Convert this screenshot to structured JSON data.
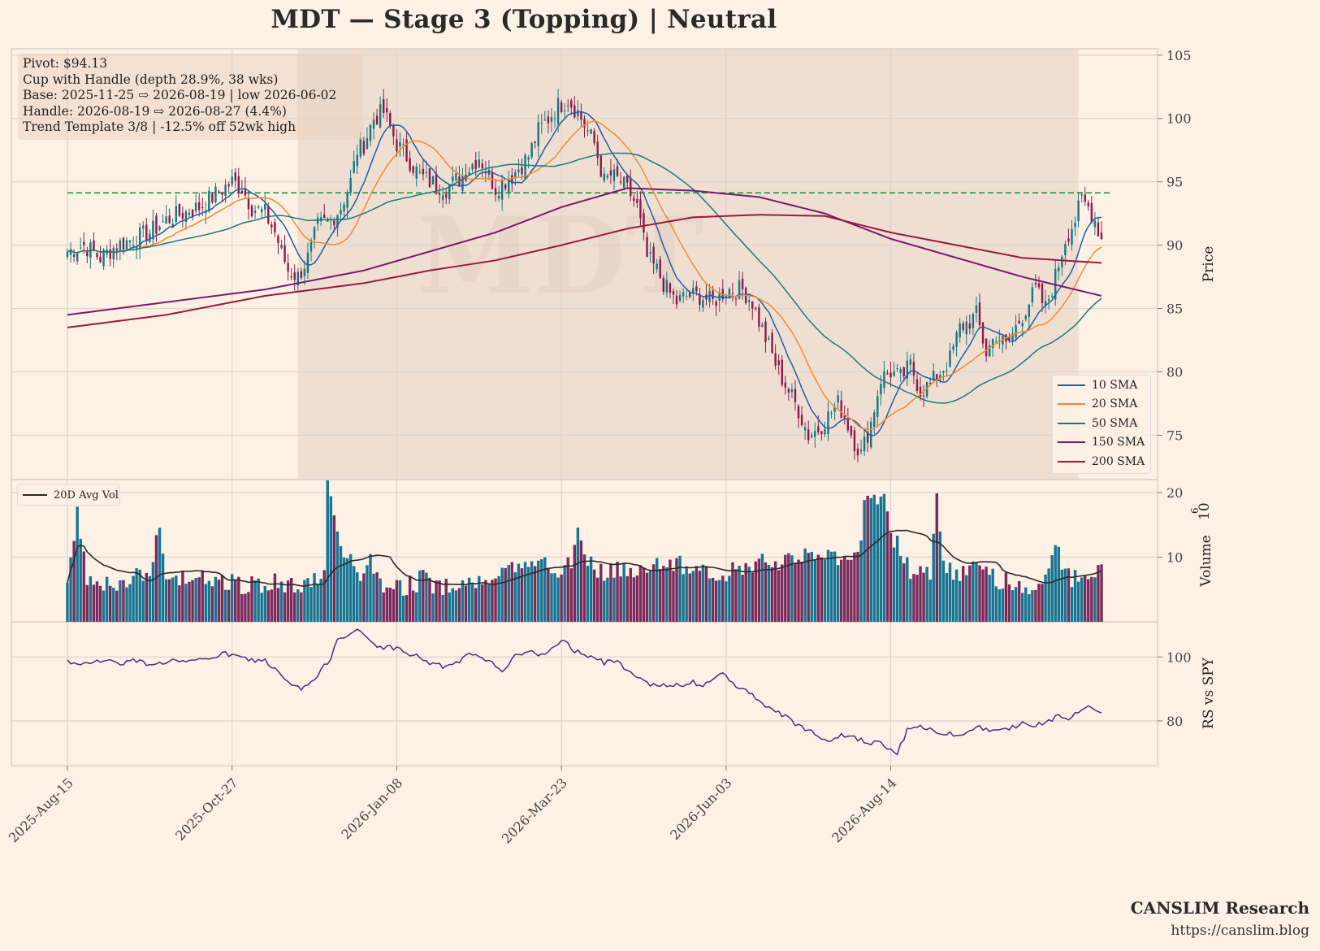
{
  "title": "MDT  —  Stage 3 (Topping)  |  Neutral",
  "info": [
    "Pivot: $94.13",
    "Cup with Handle  (depth 28.9%, 38 wks)",
    "Base: 2025-11-25 ⇨ 2026-08-19  |  low 2026-06-02",
    "Handle: 2026-08-19 ⇨ 2026-08-27 (4.4%)",
    "Trend Template 3/8  |  -12.5% off 52wk high"
  ],
  "watermark": "MDT",
  "footer": {
    "brand": "CANSLIM Research",
    "url": "https://canslim.blog"
  },
  "colors": {
    "background": "#fdf1e6",
    "up": "#16787f",
    "down": "#8e1a4c",
    "volume_up": "#187592",
    "volume_down": "#7a2a5c",
    "pivot": "#1a8a3a",
    "base_shade": "#ead8cc",
    "rs": "#4a2f7a",
    "avg_vol": "#2a2a2a"
  },
  "legend": [
    {
      "label": "10 SMA",
      "color": "#1f5fa0"
    },
    {
      "label": "20 SMA",
      "color": "#f28a30"
    },
    {
      "label": "50 SMA",
      "color": "#1a7a7a"
    },
    {
      "label": "150 SMA",
      "color": "#7a1a6a"
    },
    {
      "label": "200 SMA",
      "color": "#9a1a3a"
    }
  ],
  "vol_legend": "20D Avg Vol",
  "chart_data": {
    "type": "candlestick",
    "x_ticks": [
      "2025-Aug-15",
      "2025-Oct-27",
      "2026-Jan-08",
      "2026-Mar-23",
      "2026-Jun-03",
      "2026-Aug-14"
    ],
    "price_axis": {
      "label": "Price",
      "ticks": [
        75,
        80,
        85,
        90,
        95,
        100,
        105
      ],
      "ylim": [
        71.5,
        105.5
      ]
    },
    "volume_axis": {
      "label": "Volume",
      "multiplier": "10",
      "exponent": "6",
      "ticks": [
        10,
        20
      ],
      "ylim": [
        0,
        22
      ]
    },
    "rs_axis": {
      "label": "RS vs SPY",
      "ticks": [
        80,
        100
      ],
      "ylim": [
        66,
        111
      ]
    },
    "pivot": 94.13,
    "base_period": {
      "start": "2025-11-25",
      "end": "2026-08-19"
    },
    "close_anchors": [
      [
        0,
        89.5
      ],
      [
        5,
        90
      ],
      [
        10,
        89
      ],
      [
        15,
        90
      ],
      [
        20,
        90.5
      ],
      [
        25,
        91
      ],
      [
        30,
        92
      ],
      [
        35,
        92.5
      ],
      [
        40,
        93
      ],
      [
        45,
        94
      ],
      [
        50,
        95
      ],
      [
        53,
        94.5
      ],
      [
        56,
        93
      ],
      [
        60,
        92.5
      ],
      [
        63,
        91
      ],
      [
        67,
        88
      ],
      [
        70,
        87.5
      ],
      [
        73,
        89
      ],
      [
        76,
        91.5
      ],
      [
        80,
        92
      ],
      [
        83,
        93
      ],
      [
        86,
        95
      ],
      [
        88,
        97.5
      ],
      [
        90,
        98
      ],
      [
        93,
        100
      ],
      [
        96,
        100.5
      ],
      [
        100,
        98
      ],
      [
        103,
        97
      ],
      [
        107,
        95.5
      ],
      [
        110,
        95
      ],
      [
        115,
        94.5
      ],
      [
        120,
        95.5
      ],
      [
        125,
        97
      ],
      [
        130,
        94.5
      ],
      [
        135,
        95.5
      ],
      [
        140,
        97
      ],
      [
        143,
        99
      ],
      [
        146,
        100
      ],
      [
        149,
        101
      ],
      [
        152,
        101.5
      ],
      [
        155,
        100.5
      ],
      [
        158,
        99
      ],
      [
        160,
        98
      ],
      [
        163,
        95
      ],
      [
        165,
        95.5
      ],
      [
        168,
        95
      ],
      [
        171,
        94
      ],
      [
        173,
        93
      ],
      [
        176,
        89
      ],
      [
        179,
        88
      ],
      [
        182,
        86.5
      ],
      [
        185,
        85.5
      ],
      [
        188,
        86
      ],
      [
        192,
        86
      ],
      [
        196,
        85.5
      ],
      [
        200,
        86.5
      ],
      [
        205,
        86.5
      ],
      [
        208,
        85.5
      ],
      [
        210,
        84
      ],
      [
        213,
        82
      ],
      [
        216,
        80
      ],
      [
        219,
        78.5
      ],
      [
        222,
        77
      ],
      [
        225,
        75
      ],
      [
        228,
        75.5
      ],
      [
        231,
        76.5
      ],
      [
        234,
        77.5
      ],
      [
        236,
        76.5
      ],
      [
        239,
        74.5
      ],
      [
        241,
        73.5
      ],
      [
        244,
        76
      ],
      [
        247,
        79.5
      ],
      [
        250,
        80
      ],
      [
        253,
        79.5
      ],
      [
        256,
        80.5
      ],
      [
        259,
        78.5
      ],
      [
        262,
        79
      ],
      [
        265,
        80
      ],
      [
        268,
        81
      ],
      [
        271,
        83.5
      ],
      [
        274,
        84
      ],
      [
        276,
        84.5
      ],
      [
        279,
        81.5
      ],
      [
        282,
        83
      ],
      [
        285,
        82
      ],
      [
        288,
        83.5
      ],
      [
        291,
        85
      ],
      [
        294,
        86.5
      ],
      [
        297,
        85
      ],
      [
        300,
        87.5
      ],
      [
        303,
        90.5
      ],
      [
        306,
        92
      ],
      [
        308,
        93.5
      ],
      [
        310,
        93
      ],
      [
        312,
        92
      ],
      [
        314,
        90.5
      ]
    ],
    "volume_anchors": [
      [
        0,
        6
      ],
      [
        3,
        18
      ],
      [
        6,
        7
      ],
      [
        10,
        6
      ],
      [
        15,
        6
      ],
      [
        18,
        5.5
      ],
      [
        22,
        7.5
      ],
      [
        25,
        7
      ],
      [
        28,
        16
      ],
      [
        30,
        8
      ],
      [
        33,
        6
      ],
      [
        36,
        6.5
      ],
      [
        40,
        7.5
      ],
      [
        44,
        6.5
      ],
      [
        48,
        6
      ],
      [
        50,
        6.5
      ],
      [
        53,
        5.5
      ],
      [
        56,
        6
      ],
      [
        60,
        5.5
      ],
      [
        63,
        7
      ],
      [
        66,
        5.5
      ],
      [
        70,
        5.5
      ],
      [
        74,
        6
      ],
      [
        78,
        7
      ],
      [
        79,
        21
      ],
      [
        82,
        14
      ],
      [
        84,
        11
      ],
      [
        88,
        7
      ],
      [
        90,
        8
      ],
      [
        92,
        10
      ],
      [
        95,
        6
      ],
      [
        98,
        5.5
      ],
      [
        102,
        5.5
      ],
      [
        106,
        6
      ],
      [
        108,
        7
      ],
      [
        110,
        5.5
      ],
      [
        114,
        5
      ],
      [
        117,
        6.5
      ],
      [
        120,
        5.5
      ],
      [
        124,
        6
      ],
      [
        128,
        7
      ],
      [
        132,
        9
      ],
      [
        136,
        8.5
      ],
      [
        140,
        8
      ],
      [
        143,
        9.5
      ],
      [
        146,
        9
      ],
      [
        150,
        8
      ],
      [
        153,
        9
      ],
      [
        155,
        16
      ],
      [
        158,
        9
      ],
      [
        161,
        8
      ],
      [
        164,
        7.5
      ],
      [
        168,
        8
      ],
      [
        172,
        7.5
      ],
      [
        176,
        9
      ],
      [
        180,
        9.5
      ],
      [
        184,
        9
      ],
      [
        188,
        8.5
      ],
      [
        192,
        9
      ],
      [
        196,
        7.5
      ],
      [
        200,
        7.5
      ],
      [
        204,
        8
      ],
      [
        208,
        9
      ],
      [
        212,
        10.5
      ],
      [
        216,
        9
      ],
      [
        220,
        9.5
      ],
      [
        224,
        10.5
      ],
      [
        228,
        9.5
      ],
      [
        232,
        10
      ],
      [
        236,
        10
      ],
      [
        240,
        9.5
      ],
      [
        242,
        18
      ],
      [
        245,
        20
      ],
      [
        248,
        19
      ],
      [
        250,
        14
      ],
      [
        253,
        11
      ],
      [
        256,
        8
      ],
      [
        260,
        7
      ],
      [
        262,
        8
      ],
      [
        264,
        21
      ],
      [
        266,
        8
      ],
      [
        270,
        7.5
      ],
      [
        274,
        8.5
      ],
      [
        278,
        8
      ],
      [
        282,
        6.5
      ],
      [
        286,
        6
      ],
      [
        290,
        5.5
      ],
      [
        294,
        6
      ],
      [
        298,
        7
      ],
      [
        300,
        13
      ],
      [
        302,
        9
      ],
      [
        305,
        6.5
      ],
      [
        310,
        7
      ],
      [
        314,
        7.5
      ]
    ],
    "rs_anchors": [
      [
        0,
        99
      ],
      [
        4,
        97
      ],
      [
        8,
        99
      ],
      [
        12,
        99
      ],
      [
        16,
        98
      ],
      [
        20,
        99
      ],
      [
        24,
        98
      ],
      [
        28,
        98
      ],
      [
        32,
        99
      ],
      [
        36,
        98
      ],
      [
        40,
        99
      ],
      [
        44,
        100
      ],
      [
        48,
        101
      ],
      [
        52,
        100
      ],
      [
        56,
        99
      ],
      [
        60,
        99
      ],
      [
        62,
        97
      ],
      [
        65,
        94
      ],
      [
        68,
        91
      ],
      [
        71,
        90
      ],
      [
        74,
        92
      ],
      [
        76,
        94
      ],
      [
        78,
        97
      ],
      [
        80,
        100
      ],
      [
        82,
        106
      ],
      [
        85,
        107
      ],
      [
        88,
        108
      ],
      [
        90,
        107
      ],
      [
        93,
        104
      ],
      [
        96,
        103
      ],
      [
        100,
        103
      ],
      [
        103,
        101
      ],
      [
        107,
        100
      ],
      [
        110,
        98
      ],
      [
        114,
        97
      ],
      [
        118,
        98
      ],
      [
        121,
        100
      ],
      [
        123,
        101
      ],
      [
        126,
        99
      ],
      [
        129,
        98
      ],
      [
        132,
        96
      ],
      [
        136,
        100
      ],
      [
        139,
        102
      ],
      [
        142,
        101
      ],
      [
        145,
        101
      ],
      [
        148,
        103
      ],
      [
        151,
        105
      ],
      [
        154,
        102
      ],
      [
        157,
        101
      ],
      [
        160,
        100
      ],
      [
        163,
        98
      ],
      [
        166,
        99
      ],
      [
        169,
        97
      ],
      [
        172,
        95
      ],
      [
        175,
        93
      ],
      [
        178,
        91
      ],
      [
        181,
        91
      ],
      [
        184,
        91
      ],
      [
        187,
        91
      ],
      [
        190,
        92
      ],
      [
        193,
        91
      ],
      [
        196,
        93
      ],
      [
        199,
        95
      ],
      [
        202,
        92
      ],
      [
        205,
        90
      ],
      [
        208,
        88
      ],
      [
        211,
        86
      ],
      [
        214,
        83
      ],
      [
        217,
        82
      ],
      [
        220,
        80
      ],
      [
        223,
        78
      ],
      [
        226,
        77
      ],
      [
        229,
        75
      ],
      [
        232,
        74
      ],
      [
        235,
        76
      ],
      [
        238,
        75
      ],
      [
        241,
        74
      ],
      [
        244,
        73
      ],
      [
        247,
        73
      ],
      [
        250,
        71
      ],
      [
        252,
        70
      ],
      [
        255,
        77
      ],
      [
        258,
        78
      ],
      [
        261,
        78
      ],
      [
        264,
        76
      ],
      [
        268,
        76
      ],
      [
        271,
        76
      ],
      [
        274,
        77
      ],
      [
        277,
        78
      ],
      [
        280,
        77
      ],
      [
        283,
        78
      ],
      [
        286,
        78
      ],
      [
        290,
        79
      ],
      [
        294,
        79
      ],
      [
        298,
        80
      ],
      [
        301,
        82
      ],
      [
        304,
        81
      ],
      [
        306,
        82
      ],
      [
        308,
        83
      ],
      [
        310,
        84
      ],
      [
        312,
        84
      ],
      [
        314,
        82
      ]
    ],
    "sma150_anchors": [
      [
        0,
        84.5
      ],
      [
        30,
        85.5
      ],
      [
        60,
        86.5
      ],
      [
        90,
        88
      ],
      [
        110,
        89.5
      ],
      [
        130,
        91
      ],
      [
        150,
        93
      ],
      [
        170,
        94.5
      ],
      [
        190,
        94.3
      ],
      [
        210,
        93.8
      ],
      [
        230,
        92.5
      ],
      [
        250,
        90.5
      ],
      [
        270,
        89
      ],
      [
        290,
        87.5
      ],
      [
        314,
        86
      ]
    ],
    "sma200_anchors": [
      [
        0,
        83.5
      ],
      [
        30,
        84.5
      ],
      [
        60,
        86
      ],
      [
        90,
        87
      ],
      [
        110,
        88
      ],
      [
        130,
        88.8
      ],
      [
        150,
        90
      ],
      [
        170,
        91.3
      ],
      [
        190,
        92.2
      ],
      [
        210,
        92.4
      ],
      [
        230,
        92.3
      ],
      [
        250,
        91
      ],
      [
        270,
        90
      ],
      [
        290,
        89
      ],
      [
        314,
        88.6
      ]
    ]
  }
}
